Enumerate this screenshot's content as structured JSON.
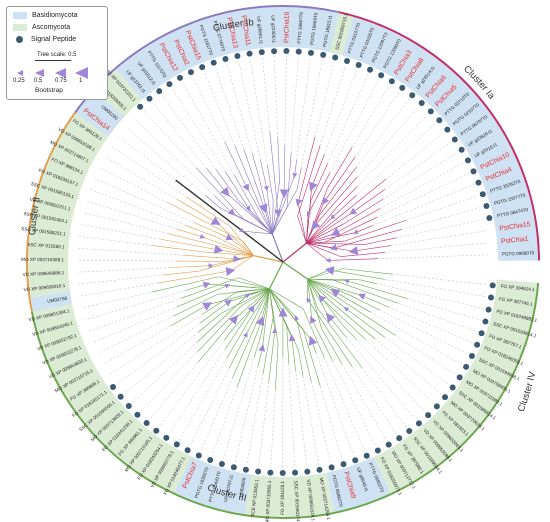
{
  "legend": {
    "basidio_label": "Basidiomycota",
    "asco_label": "Ascomycota",
    "signal_label": "Signal Peptide",
    "scale_label": "Tree scale: 0.5",
    "bootstrap_values": [
      "0.25",
      "0.5",
      "0.75",
      "1"
    ],
    "bootstrap_label": "Bootstrap"
  },
  "clusters": [
    {
      "name": "Cluster Ia"
    },
    {
      "name": "Cluster Ib"
    },
    {
      "name": "Cluster II"
    },
    {
      "name": "Cluster III"
    },
    {
      "name": "Cluster IV"
    }
  ],
  "colors": {
    "basidio_bg": "#cfe2f3",
    "asco_bg": "#dcebd3",
    "signal_dot": "#3d5a73",
    "highlight_text": "#e03030",
    "cluster_ia": "#c0306b",
    "cluster_ib": "#8a7abf",
    "cluster_ii": "#e0a050",
    "cluster_iii": "#6aa84f",
    "cluster_iv": "#6aa84f",
    "bootstrap": "#9f86d9"
  },
  "leaves": [
    {
      "label": "PGTG 09680T0",
      "cluster": "Ia",
      "highlight": false,
      "signal": false
    },
    {
      "label": "PstChia1",
      "cluster": "Ia",
      "highlight": true,
      "signal": false
    },
    {
      "label": "PstChia15",
      "cluster": "Ia",
      "highlight": true,
      "signal": false
    },
    {
      "label": "PTTG 08474T0",
      "cluster": "Ia",
      "highlight": false,
      "signal": true
    },
    {
      "label": "PGTG 15577T0",
      "cluster": "Ia",
      "highlight": false,
      "signal": true
    },
    {
      "label": "PTTG 25262T0",
      "cluster": "Ia",
      "highlight": false,
      "signal": true
    },
    {
      "label": "PstChia4",
      "cluster": "Ia",
      "highlight": true,
      "signal": true
    },
    {
      "label": "PstChia10",
      "cluster": "Ia",
      "highlight": true,
      "signal": true
    },
    {
      "label": "UF g2018.t1",
      "cluster": "Ia",
      "highlight": false,
      "signal": true
    },
    {
      "label": "UF g33616.t1",
      "cluster": "Ia",
      "highlight": false,
      "signal": true
    },
    {
      "label": "PTTG 06707T0",
      "cluster": "Ia",
      "highlight": false,
      "signal": true
    },
    {
      "label": "PGTG 02107T0",
      "cluster": "Ia",
      "highlight": false,
      "signal": true
    },
    {
      "label": "PTTG 02719T0",
      "cluster": "Ia",
      "highlight": false,
      "signal": true
    },
    {
      "label": "PstChia5",
      "cluster": "Ia",
      "highlight": true,
      "signal": true
    },
    {
      "label": "PstChia6",
      "cluster": "Ia",
      "highlight": true,
      "signal": true
    },
    {
      "label": "UF g24514.t1",
      "cluster": "Ia",
      "highlight": false,
      "signal": true
    },
    {
      "label": "PstChia8",
      "cluster": "Ia",
      "highlight": true,
      "signal": true
    },
    {
      "label": "PstChia3",
      "cluster": "Ia",
      "highlight": true,
      "signal": true
    },
    {
      "label": "PGTG 12093T0",
      "cluster": "Ia",
      "highlight": false,
      "signal": true
    },
    {
      "label": "PGTG 12097T0",
      "cluster": "Ia",
      "highlight": false,
      "signal": true
    },
    {
      "label": "PTTG 03155T0",
      "cluster": "Ia",
      "highlight": false,
      "signal": true
    },
    {
      "label": "PTTG 03157T0",
      "cluster": "Ia",
      "highlight": false,
      "signal": true
    },
    {
      "label": "SSC 001059715.1",
      "cluster": "Ia",
      "highlight": false,
      "signal": true
    },
    {
      "label": "PGTG 18815.t1",
      "cluster": "Ib",
      "highlight": false,
      "signal": true
    },
    {
      "label": "PGTG 16669T0",
      "cluster": "Ib",
      "highlight": false,
      "signal": true
    },
    {
      "label": "PTTG 16667T0",
      "cluster": "Ib",
      "highlight": false,
      "signal": true
    },
    {
      "label": "PstChia16",
      "cluster": "Ib",
      "highlight": true,
      "signal": true
    },
    {
      "label": "UF g22306.t1",
      "cluster": "Ib",
      "highlight": false,
      "signal": true
    },
    {
      "label": "UF g28661.t1",
      "cluster": "Ib",
      "highlight": false,
      "signal": true
    },
    {
      "label": "PstChia11",
      "cluster": "Ib",
      "highlight": true,
      "signal": true
    },
    {
      "label": "PstChia13",
      "cluster": "Ib",
      "highlight": true,
      "signal": true
    },
    {
      "label": "PTTG 07749T0",
      "cluster": "Ib",
      "highlight": false,
      "signal": true
    },
    {
      "label": "PGTG 11817T0",
      "cluster": "Ib",
      "highlight": false,
      "signal": true
    },
    {
      "label": "PstChia15",
      "cluster": "Ib",
      "highlight": true,
      "signal": true
    },
    {
      "label": "PstChia2",
      "cluster": "Ib",
      "highlight": true,
      "signal": true
    },
    {
      "label": "PstChia12",
      "cluster": "Ib",
      "highlight": true,
      "signal": true
    },
    {
      "label": "PTTG 11170T0",
      "cluster": "Ib",
      "highlight": false,
      "signal": true
    },
    {
      "label": "UF g11612.t1",
      "cluster": "Ib",
      "highlight": false,
      "signal": true
    },
    {
      "label": "UF g13761.t1",
      "cluster": "Ib",
      "highlight": false,
      "signal": true
    },
    {
      "label": "MO XP 003720202.1",
      "cluster": "Ib",
      "highlight": false,
      "signal": true
    },
    {
      "label": "FO XP 018259206.1",
      "cluster": "Ib",
      "highlight": false,
      "signal": false
    },
    {
      "label": "UM05290",
      "cluster": "Ib",
      "highlight": false,
      "signal": false
    },
    {
      "label": "PstChia14",
      "cluster": "Ib",
      "highlight": true,
      "signal": false
    },
    {
      "label": "FG XP 386129.1",
      "cluster": "II",
      "highlight": false,
      "signal": false
    },
    {
      "label": "VD XP 009653186.1",
      "cluster": "II",
      "highlight": false,
      "signal": false
    },
    {
      "label": "MO XP 003714807.1",
      "cluster": "II",
      "highlight": false,
      "signal": false
    },
    {
      "label": "FO XP 388134.1",
      "cluster": "II",
      "highlight": false,
      "signal": false
    },
    {
      "label": "FO XP 018239197.1",
      "cluster": "II",
      "highlight": false,
      "signal": false
    },
    {
      "label": "SSC XP 001590133.1",
      "cluster": "II",
      "highlight": false,
      "signal": false
    },
    {
      "label": "VD XP 009652221.1",
      "cluster": "II",
      "highlight": false,
      "signal": false
    },
    {
      "label": "SSC XP 001592403.1",
      "cluster": "II",
      "highlight": false,
      "signal": false
    },
    {
      "label": "SSC XP 001588251.1",
      "cluster": "II",
      "highlight": false,
      "signal": false
    },
    {
      "label": "SSC XP 912560.1",
      "cluster": "II",
      "highlight": false,
      "signal": false
    },
    {
      "label": "MO XP 003716388.1",
      "cluster": "II",
      "highlight": false,
      "signal": false
    },
    {
      "label": "VD XP 009649886.1",
      "cluster": "II",
      "highlight": false,
      "signal": false
    },
    {
      "label": "VD XP 009658016.1",
      "cluster": "II",
      "highlight": false,
      "signal": false
    },
    {
      "label": "UM02758",
      "cluster": "II",
      "highlight": false,
      "signal": false
    },
    {
      "label": "VD XP 009651304.1",
      "cluster": "III",
      "highlight": false,
      "signal": false
    },
    {
      "label": "VD XP 009654340.1",
      "cluster": "III",
      "highlight": false,
      "signal": false
    },
    {
      "label": "VD XP 009652732.1",
      "cluster": "III",
      "highlight": false,
      "signal": false
    },
    {
      "label": "VD XP 009652278.1",
      "cluster": "III",
      "highlight": false,
      "signal": false
    },
    {
      "label": "VD XP 009653830.1",
      "cluster": "III",
      "highlight": false,
      "signal": false
    },
    {
      "label": "MO XP 003715715.1",
      "cluster": "III",
      "highlight": false,
      "signal": false
    },
    {
      "label": "FG XP 386866.1",
      "cluster": "III",
      "highlight": false,
      "signal": false
    },
    {
      "label": "FO XP 018245171.1",
      "cluster": "III",
      "highlight": false,
      "signal": true
    },
    {
      "label": "SSC XP 001594505.1",
      "cluster": "III",
      "highlight": false,
      "signal": true
    },
    {
      "label": "MO XP 003713809.1",
      "cluster": "III",
      "highlight": false,
      "signal": true
    },
    {
      "label": "FO XP 018241258.1",
      "cluster": "III",
      "highlight": false,
      "signal": true
    },
    {
      "label": "FG XP 380961.1",
      "cluster": "III",
      "highlight": false,
      "signal": true
    },
    {
      "label": "MO XP 003715165.1",
      "cluster": "III",
      "highlight": false,
      "signal": true
    },
    {
      "label": "FO XP 018243254.1",
      "cluster": "III",
      "highlight": false,
      "signal": true
    },
    {
      "label": "VD XP 009650778.1",
      "cluster": "III",
      "highlight": false,
      "signal": true
    },
    {
      "label": "FO XP 018246477.1",
      "cluster": "III",
      "highlight": false,
      "signal": true
    },
    {
      "label": "PstChia7",
      "cluster": "III",
      "highlight": true,
      "signal": true
    },
    {
      "label": "PGTG 16305T0",
      "cluster": "III",
      "highlight": false,
      "signal": true
    },
    {
      "label": "PTTG 05441T0",
      "cluster": "III",
      "highlight": false,
      "signal": true
    },
    {
      "label": "UF g30797.t1",
      "cluster": "III",
      "highlight": false,
      "signal": true
    },
    {
      "label": "UM03828",
      "cluster": "III",
      "highlight": false,
      "signal": true
    },
    {
      "label": "SCE NP 013553.1",
      "cluster": "III",
      "highlight": false,
      "signal": true
    },
    {
      "label": "MO XP 003715665.1",
      "cluster": "III",
      "highlight": false,
      "signal": true
    },
    {
      "label": "FG XP 391128.1",
      "cluster": "III",
      "highlight": false,
      "signal": true
    },
    {
      "label": "SSC XP 001590174.1",
      "cluster": "III",
      "highlight": false,
      "signal": true
    },
    {
      "label": "VD XP 009651624.1",
      "cluster": "III",
      "highlight": false,
      "signal": true
    },
    {
      "label": "MO XP 003714259.1",
      "cluster": "III",
      "highlight": false,
      "signal": true
    },
    {
      "label": "PGTG 06882T0",
      "cluster": "III",
      "highlight": false,
      "signal": true
    },
    {
      "label": "PstChia9",
      "cluster": "III",
      "highlight": true,
      "signal": true
    },
    {
      "label": "UF g6640.t1",
      "cluster": "III",
      "highlight": false,
      "signal": true
    },
    {
      "label": "PTTG 06803T0",
      "cluster": "III",
      "highlight": false,
      "signal": true
    },
    {
      "label": "FO XP 018250977.1",
      "cluster": "IV",
      "highlight": false,
      "signal": true
    },
    {
      "label": "MO XP 003712772.1",
      "cluster": "IV",
      "highlight": false,
      "signal": true
    },
    {
      "label": "FG XP 387988.1",
      "cluster": "IV",
      "highlight": false,
      "signal": true
    },
    {
      "label": "SSC XP 001589584.1",
      "cluster": "IV",
      "highlight": false,
      "signal": true
    },
    {
      "label": "VD XP 009653088.1",
      "cluster": "IV",
      "highlight": false,
      "signal": true
    },
    {
      "label": "VD XP 009653003.1",
      "cluster": "IV",
      "highlight": false,
      "signal": true
    },
    {
      "label": "FG XP 381823.1",
      "cluster": "IV",
      "highlight": false,
      "signal": true
    },
    {
      "label": "MO XP 003720624.1",
      "cluster": "IV",
      "highlight": false,
      "signal": true
    },
    {
      "label": "SSC XP 001586814.1",
      "cluster": "IV",
      "highlight": false,
      "signal": true
    },
    {
      "label": "MO XP 003711983.1",
      "cluster": "IV",
      "highlight": false,
      "signal": true
    },
    {
      "label": "MO XP 003709400.1",
      "cluster": "IV",
      "highlight": false,
      "signal": true
    },
    {
      "label": "SSC XP 001593048.1",
      "cluster": "IV",
      "highlight": false,
      "signal": true
    },
    {
      "label": "FO XP 018246059.1",
      "cluster": "IV",
      "highlight": false,
      "signal": true
    },
    {
      "label": "FG XP 387757.1",
      "cluster": "IV",
      "highlight": false,
      "signal": true
    },
    {
      "label": "SSC XP 001593814.1",
      "cluster": "IV",
      "highlight": false,
      "signal": true
    },
    {
      "label": "FO XP 018248882.1",
      "cluster": "IV",
      "highlight": false,
      "signal": true
    },
    {
      "label": "FG XP 387745.1",
      "cluster": "IV",
      "highlight": false,
      "signal": true
    },
    {
      "label": "FO XP 384824.1",
      "cluster": "IV",
      "highlight": false,
      "signal": true
    }
  ]
}
